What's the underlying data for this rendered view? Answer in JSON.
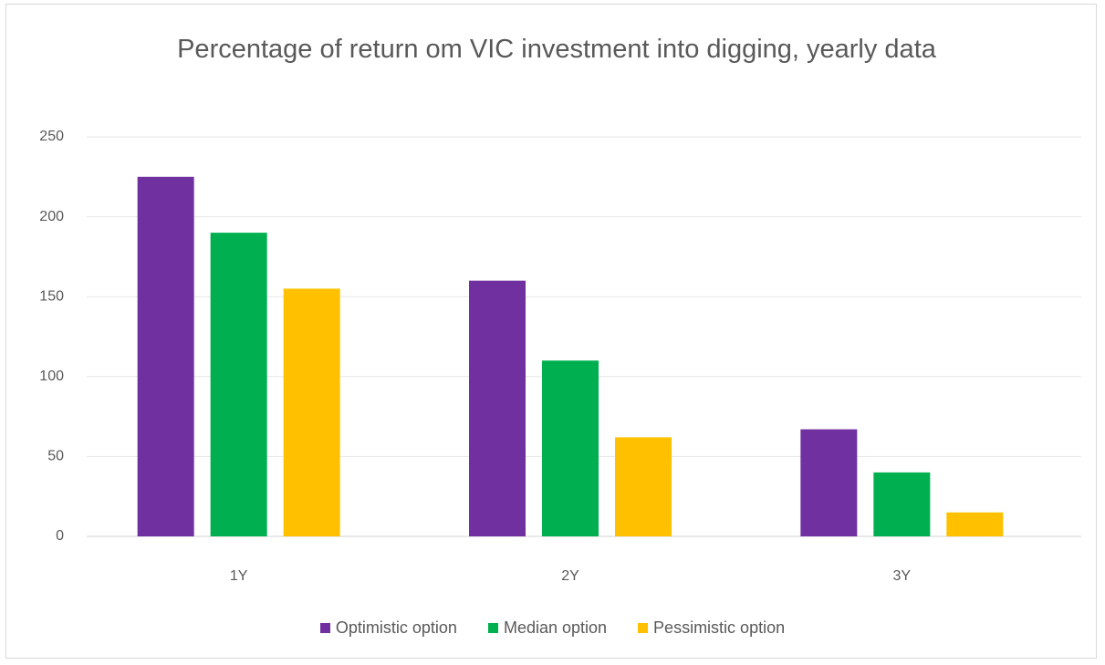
{
  "chart_data": {
    "type": "bar",
    "title": "Percentage of return om VIC investment into digging, yearly data",
    "categories": [
      "1Y",
      "2Y",
      "3Y"
    ],
    "series": [
      {
        "name": "Optimistic option",
        "color": "#7030a0",
        "values": [
          225,
          160,
          67
        ]
      },
      {
        "name": "Median option",
        "color": "#00b050",
        "values": [
          190,
          110,
          40
        ]
      },
      {
        "name": "Pessimistic option",
        "color": "#ffc000",
        "values": [
          155,
          62,
          15
        ]
      }
    ],
    "ylim": [
      0,
      250
    ],
    "yticks": [
      0,
      50,
      100,
      150,
      200,
      250
    ],
    "grid": true,
    "legend": "bottom"
  }
}
